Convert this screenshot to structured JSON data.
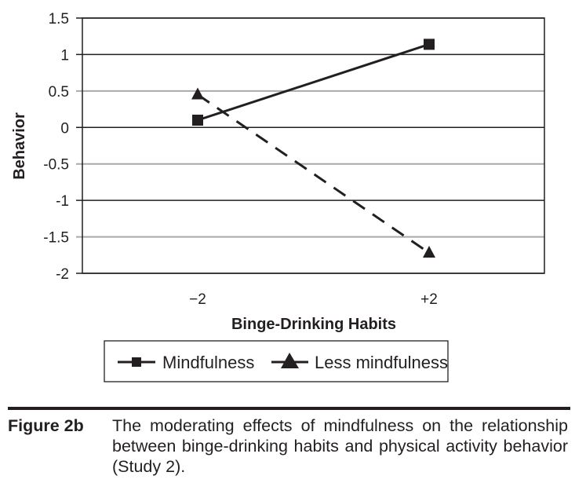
{
  "chart_data": {
    "type": "line",
    "title": "",
    "xlabel": "Binge-Drinking Habits",
    "ylabel": "Behavior",
    "categories": [
      "−2",
      "+2"
    ],
    "ylim": [
      -2,
      1.5
    ],
    "yticks": [
      1.5,
      1,
      0.5,
      0,
      -0.5,
      -1,
      -1.5,
      -2
    ],
    "ytick_labels": [
      "1.5",
      "1",
      "0.5",
      "0",
      "-0.5",
      "-1",
      "-1.5",
      "-2"
    ],
    "grid": true,
    "legend_position": "bottom",
    "series": [
      {
        "name": "Mindfulness",
        "values": [
          0.1,
          1.14
        ],
        "marker": "square",
        "line": "solid"
      },
      {
        "name": "Less mindfulness",
        "values": [
          0.45,
          -1.72
        ],
        "marker": "triangle",
        "line": "dashed"
      }
    ]
  },
  "caption": {
    "label": "Figure 2b",
    "text": "The moderating effects of mindfulness on the relationship between binge-drinking habits and physical activity behavior (Study 2)."
  },
  "colors": {
    "ink": "#231f20",
    "grid_major": "#231f20",
    "grid_minor": "#a7a9ac"
  }
}
